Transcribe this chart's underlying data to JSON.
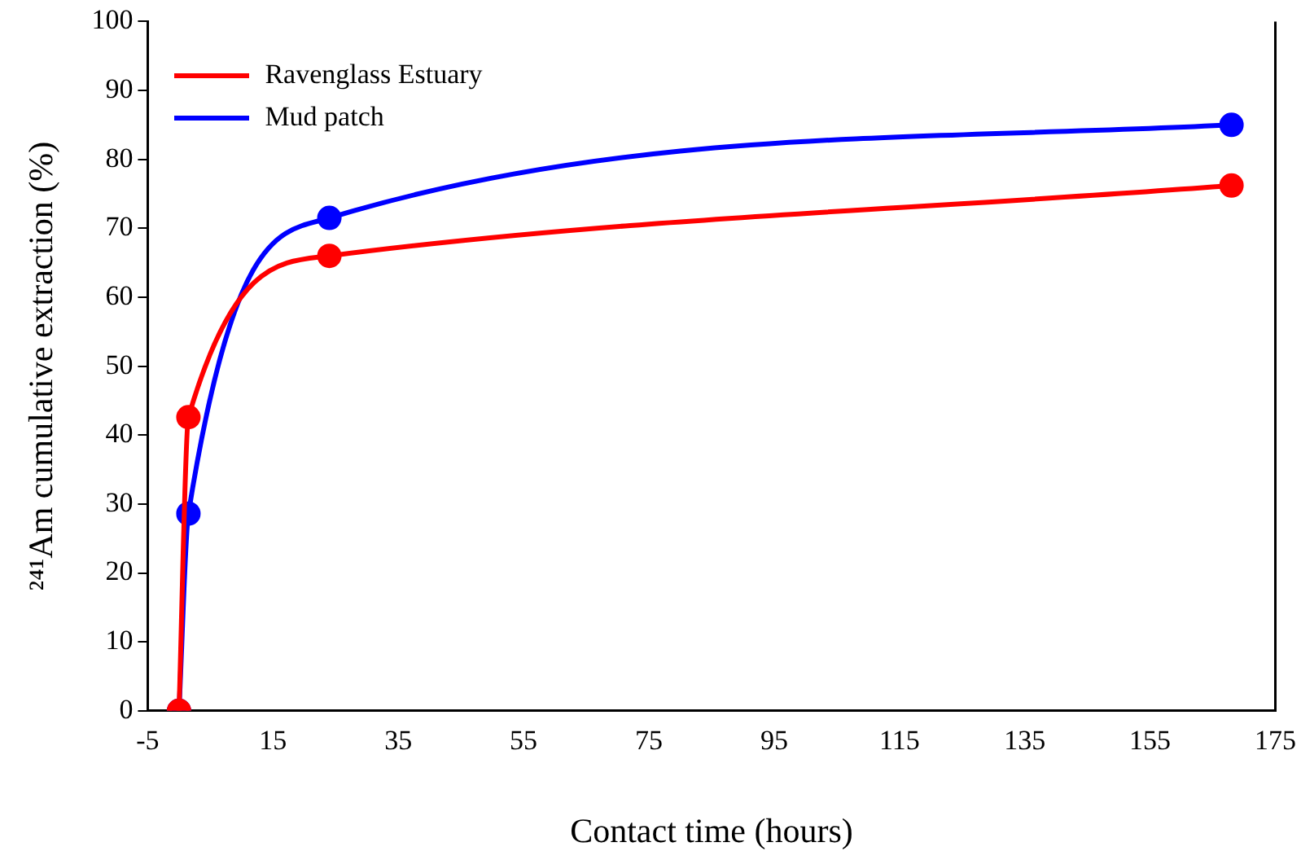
{
  "chart_data": {
    "type": "line",
    "xlabel": "Contact time (hours)",
    "ylabel": "²⁴¹Am cumulative extraction (%)",
    "xlim": [
      -5,
      175
    ],
    "xticks": [
      -5,
      15,
      35,
      55,
      75,
      95,
      115,
      135,
      155,
      175
    ],
    "ylim": [
      0,
      100
    ],
    "yticks": [
      0,
      10,
      20,
      30,
      40,
      50,
      60,
      70,
      80,
      90,
      100
    ],
    "grid": false,
    "legend": "top left",
    "marker": "circle",
    "line_style": "solid",
    "series": [
      {
        "name": "Ravenglass Estuary",
        "color": "#ff0000",
        "x": [
          0,
          1.5,
          24,
          168
        ],
        "values": [
          0,
          42.6,
          66,
          76.2
        ]
      },
      {
        "name": "Mud patch",
        "color": "#0000ff",
        "x": [
          0,
          1.5,
          24,
          168
        ],
        "values": [
          0,
          28.6,
          71.5,
          85
        ]
      }
    ]
  }
}
